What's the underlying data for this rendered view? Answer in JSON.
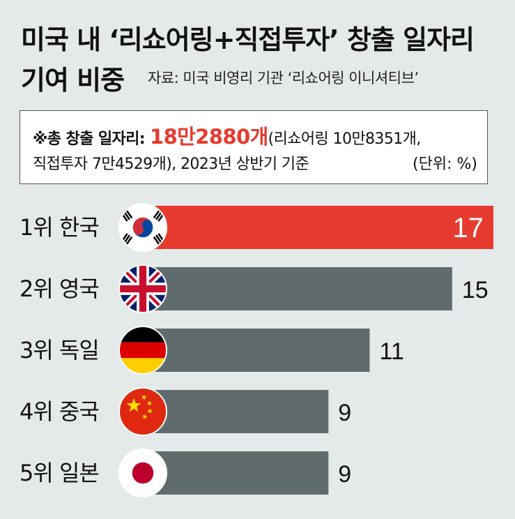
{
  "title": {
    "line1": "미국 내 ‘리쇼어링+직접투자’ 창출 일자리",
    "line2": "기여 비중",
    "source": "자료: 미국 비영리 기관 ‘리쇼어링 이니셔티브’"
  },
  "info": {
    "label": "※총 창출 일자리: ",
    "total": "18만2880개",
    "detail1": "(리쇼어링 10만8351개,",
    "detail2": "직접투자 7만4529개), 2023년 상반기 기준",
    "unit": "(단위: %)"
  },
  "colors": {
    "highlight": "#e63b2e",
    "bar": "#5f6b6d",
    "background": "#e4e9ea"
  },
  "chart_data": {
    "type": "bar",
    "orientation": "horizontal",
    "categories": [
      "1위 한국",
      "2위 영국",
      "3위 독일",
      "4위 중국",
      "5위 일본"
    ],
    "flags": [
      "south-korea-flag-icon",
      "uk-flag-icon",
      "germany-flag-icon",
      "china-flag-icon",
      "japan-flag-icon"
    ],
    "values": [
      17,
      15,
      11,
      9,
      9
    ],
    "value_labels": [
      "17",
      "15",
      "11",
      "9",
      "9"
    ],
    "highlight_index": 0
  }
}
